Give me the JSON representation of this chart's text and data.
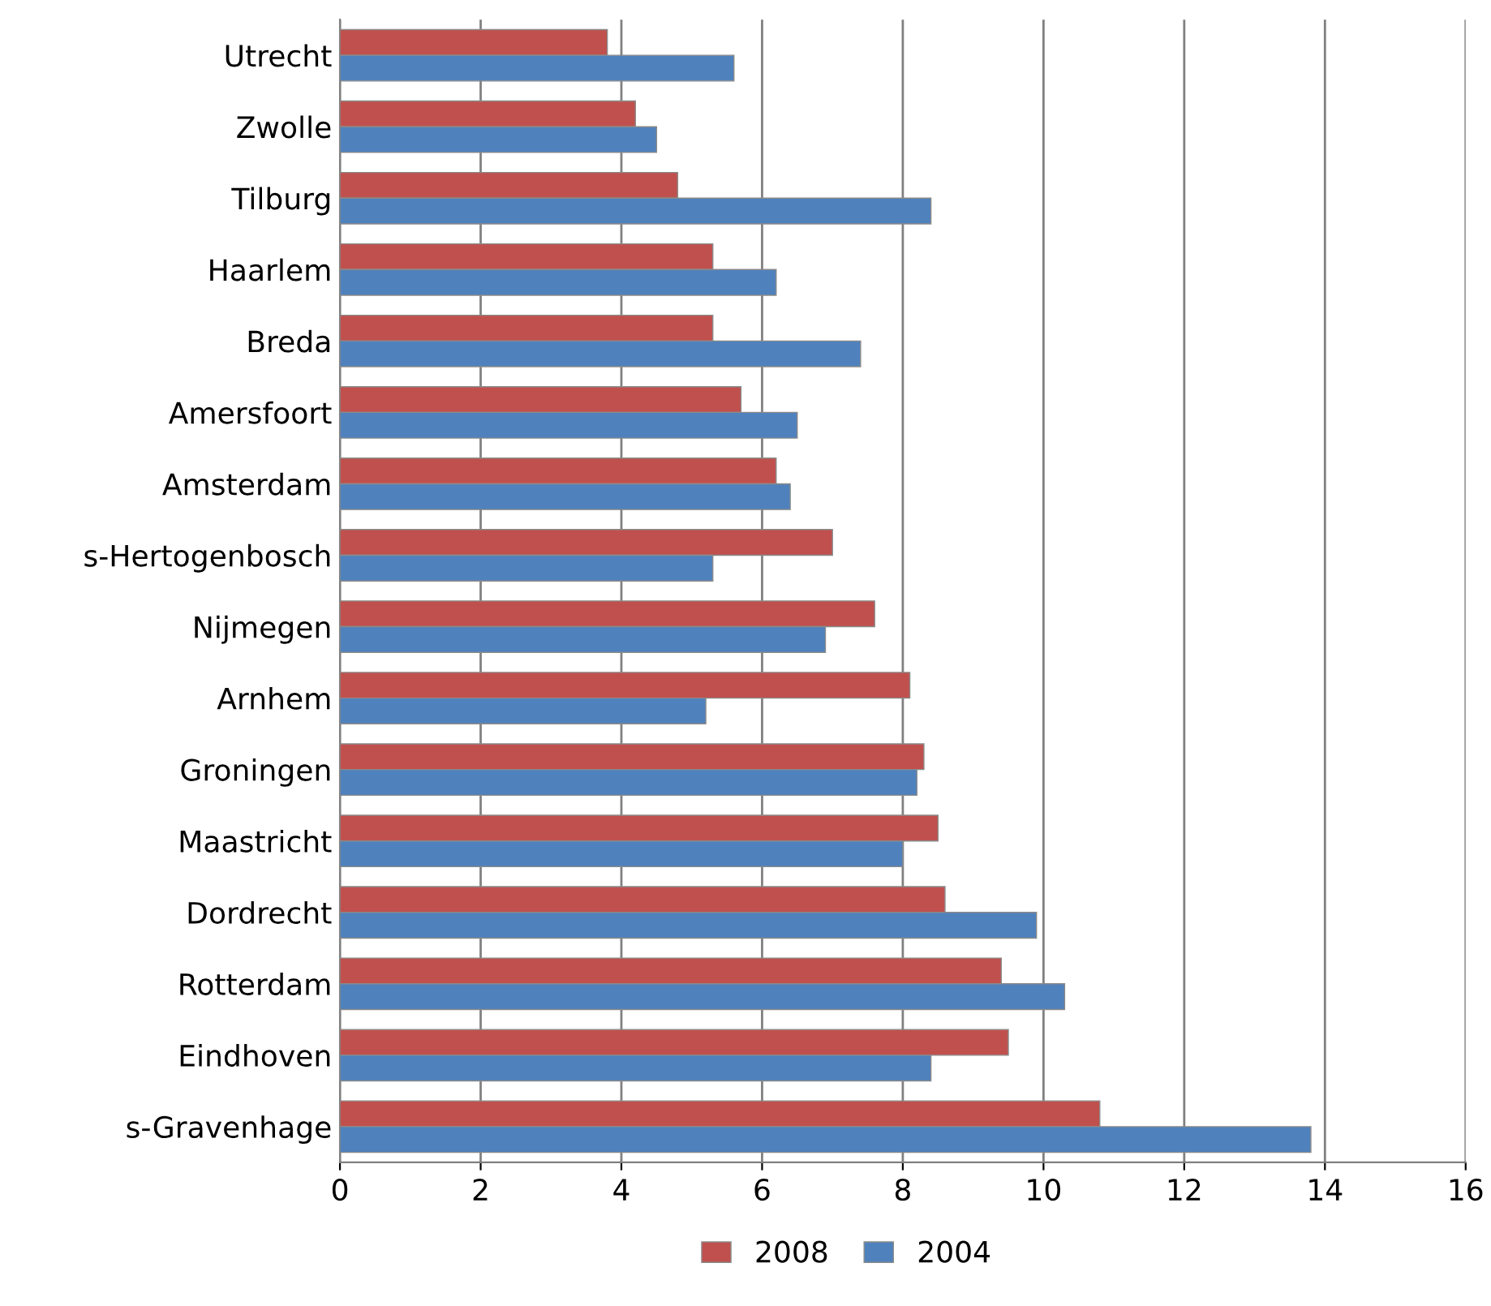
{
  "chart_data": {
    "type": "bar",
    "orientation": "horizontal",
    "categories": [
      "Utrecht",
      "Zwolle",
      "Tilburg",
      "Haarlem",
      "Breda",
      "Amersfoort",
      "Amsterdam",
      "s-Hertogenbosch",
      "Nijmegen",
      "Arnhem",
      "Groningen",
      "Maastricht",
      "Dordrecht",
      "Rotterdam",
      "Eindhoven",
      "s-Gravenhage"
    ],
    "series": [
      {
        "name": "2008",
        "color": "#c0504d",
        "values": [
          3.8,
          4.2,
          4.8,
          5.3,
          5.3,
          5.7,
          6.2,
          7.0,
          7.6,
          8.1,
          8.3,
          8.5,
          8.6,
          9.4,
          9.5,
          10.8
        ]
      },
      {
        "name": "2004",
        "color": "#4f81bd",
        "values": [
          5.6,
          4.5,
          8.4,
          6.2,
          7.4,
          6.5,
          6.4,
          5.3,
          6.9,
          5.2,
          8.2,
          8.0,
          9.9,
          10.3,
          8.4,
          13.8
        ]
      }
    ],
    "xlim": [
      0,
      16
    ],
    "xticks": [
      0,
      2,
      4,
      6,
      8,
      10,
      12,
      14,
      16
    ],
    "grid": "x",
    "legend": "bottom"
  }
}
